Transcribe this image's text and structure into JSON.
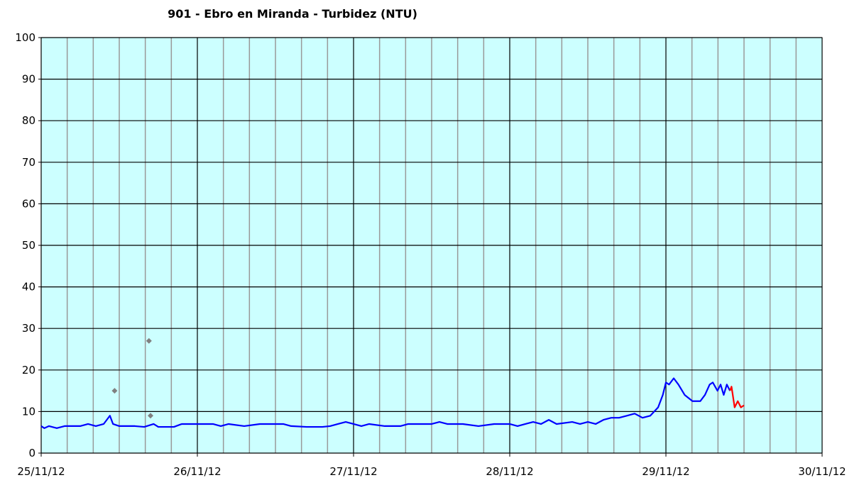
{
  "chart_data": {
    "type": "line",
    "title": "901 - Ebro en Miranda - Turbidez (NTU)",
    "xlim": [
      0,
      5
    ],
    "xticks": [
      {
        "value": 0,
        "label": "25/11/12"
      },
      {
        "value": 1,
        "label": "26/11/12"
      },
      {
        "value": 2,
        "label": "27/11/12"
      },
      {
        "value": 3,
        "label": "28/11/12"
      },
      {
        "value": 4,
        "label": "29/11/12"
      },
      {
        "value": 5,
        "label": "30/11/12"
      }
    ],
    "minor_divisions": 6,
    "ylim": [
      0,
      100
    ],
    "yticks": [
      0,
      10,
      20,
      30,
      40,
      50,
      60,
      70,
      80,
      90,
      100
    ],
    "grid": true,
    "background": "#ccffff",
    "series": [
      {
        "style": "line",
        "color": "#0000ff",
        "x": [
          0,
          0.02,
          0.05,
          0.1,
          0.15,
          0.2,
          0.25,
          0.3,
          0.35,
          0.4,
          0.44,
          0.46,
          0.5,
          0.6,
          0.66,
          0.72,
          0.75,
          0.85,
          0.9,
          1.0,
          1.1,
          1.15,
          1.2,
          1.3,
          1.4,
          1.5,
          1.55,
          1.6,
          1.7,
          1.8,
          1.85,
          1.9,
          1.95,
          2.0,
          2.05,
          2.1,
          2.2,
          2.3,
          2.35,
          2.5,
          2.55,
          2.6,
          2.7,
          2.8,
          2.9,
          3.0,
          3.05,
          3.1,
          3.15,
          3.2,
          3.25,
          3.3,
          3.4,
          3.45,
          3.5,
          3.55,
          3.6,
          3.65,
          3.7,
          3.75,
          3.8,
          3.85,
          3.9,
          3.95,
          3.98,
          4.0,
          4.02,
          4.05,
          4.08,
          4.12,
          4.17,
          4.22,
          4.25,
          4.28,
          4.3,
          4.33,
          4.35,
          4.37,
          4.39,
          4.41
        ],
        "values": [
          6.5,
          6,
          6.5,
          6,
          6.5,
          6.5,
          6.5,
          7,
          6.5,
          7,
          9,
          7,
          6.5,
          6.5,
          6.3,
          7,
          6.3,
          6.3,
          7,
          7,
          7,
          6.5,
          7,
          6.5,
          7,
          7,
          7,
          6.5,
          6.3,
          6.3,
          6.5,
          7,
          7.5,
          7,
          6.5,
          7,
          6.5,
          6.5,
          7,
          7,
          7.5,
          7,
          7,
          6.5,
          7,
          7,
          6.5,
          7,
          7.5,
          7,
          8,
          7,
          7.5,
          7,
          7.5,
          7,
          8,
          8.5,
          8.5,
          9,
          9.5,
          8.5,
          9,
          11,
          14,
          17,
          16.5,
          18,
          16.5,
          14,
          12.5,
          12.5,
          14,
          16.5,
          17,
          15,
          16.5,
          14,
          16.5,
          15
        ]
      },
      {
        "style": "line",
        "color": "#ff0000",
        "x": [
          4.41,
          4.42,
          4.44,
          4.46,
          4.48,
          4.5
        ],
        "values": [
          15,
          16,
          11,
          12.5,
          11,
          11.5
        ]
      },
      {
        "style": "points",
        "color": "#808080",
        "x": [
          0.47,
          0.69,
          0.7
        ],
        "values": [
          15,
          27,
          9
        ]
      }
    ]
  }
}
